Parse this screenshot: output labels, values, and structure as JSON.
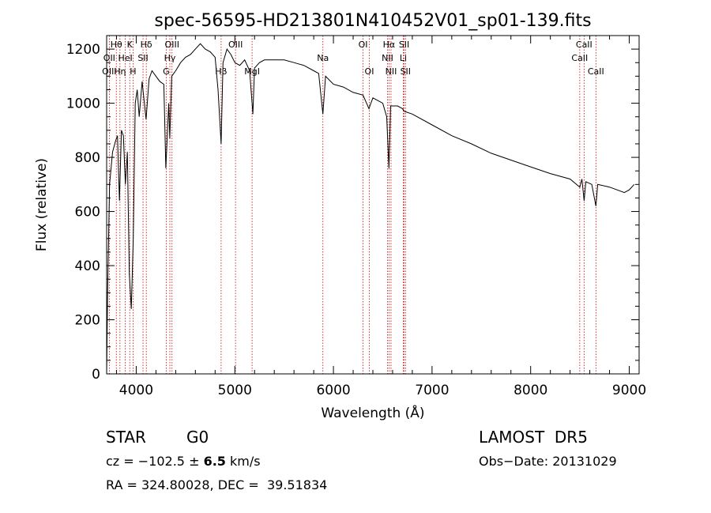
{
  "chart_data": {
    "type": "line",
    "title": "spec-56595-HD213801N410452V01_sp01-139.fits",
    "xlabel": "Wavelength (Å)",
    "ylabel": "Flux (relative)",
    "xlim": [
      3700,
      9100
    ],
    "ylim": [
      0,
      1250
    ],
    "xticks": [
      4000,
      5000,
      6000,
      7000,
      8000,
      9000
    ],
    "xtick_labels": [
      "4000",
      "5000",
      "6000",
      "7000",
      "8000",
      "9000"
    ],
    "yticks": [
      0,
      200,
      400,
      600,
      800,
      1000,
      1200
    ],
    "ytick_labels": [
      "0",
      "200",
      "400",
      "600",
      "800",
      "1000",
      "1200"
    ],
    "grid": false,
    "series": [
      {
        "x": [
          3700,
          3710,
          3730,
          3760,
          3790,
          3810,
          3830,
          3850,
          3870,
          3890,
          3910,
          3930,
          3950,
          3970,
          3990,
          4010,
          4030,
          4060,
          4100,
          4130,
          4160,
          4200,
          4240,
          4280,
          4300,
          4330,
          4340,
          4360,
          4400,
          4450,
          4500,
          4550,
          4600,
          4650,
          4700,
          4750,
          4800,
          4830,
          4861,
          4880,
          4920,
          4960,
          5000,
          5050,
          5100,
          5150,
          5183,
          5200,
          5250,
          5300,
          5400,
          5500,
          5600,
          5700,
          5800,
          5850,
          5893,
          5920,
          6000,
          6100,
          6200,
          6300,
          6360,
          6400,
          6500,
          6540,
          6563,
          6580,
          6650,
          6700,
          6720,
          6800,
          7000,
          7200,
          7400,
          7600,
          7800,
          8000,
          8200,
          8400,
          8498,
          8520,
          8542,
          8560,
          8620,
          8662,
          8680,
          8800,
          8950,
          9000,
          9050
        ],
        "y": [
          0,
          300,
          700,
          820,
          860,
          880,
          640,
          900,
          880,
          700,
          820,
          370,
          240,
          500,
          1000,
          1050,
          950,
          1080,
          940,
          1090,
          1120,
          1100,
          1080,
          1070,
          760,
          1000,
          870,
          1100,
          1120,
          1150,
          1170,
          1180,
          1200,
          1220,
          1200,
          1190,
          1170,
          1050,
          850,
          1150,
          1200,
          1180,
          1150,
          1140,
          1160,
          1120,
          960,
          1130,
          1150,
          1160,
          1160,
          1160,
          1150,
          1140,
          1120,
          1110,
          960,
          1100,
          1070,
          1060,
          1040,
          1030,
          980,
          1020,
          1000,
          950,
          760,
          990,
          990,
          980,
          970,
          960,
          920,
          880,
          850,
          815,
          790,
          765,
          740,
          720,
          690,
          720,
          640,
          710,
          700,
          620,
          700,
          690,
          670,
          680,
          700
        ]
      }
    ],
    "line_markers": [
      {
        "label": "Hθ",
        "x": 3798,
        "row": 1
      },
      {
        "label": "OII",
        "x": 3727,
        "row": 2
      },
      {
        "label": "OIII",
        "x": 3727,
        "row": 3
      },
      {
        "label": "K",
        "x": 3934,
        "row": 1
      },
      {
        "label": "HeI",
        "x": 3889,
        "row": 2
      },
      {
        "label": "Hη",
        "x": 3835,
        "row": 3
      },
      {
        "label": "H",
        "x": 3968,
        "row": 3
      },
      {
        "label": "SII",
        "x": 4069,
        "row": 2
      },
      {
        "label": "Hδ",
        "x": 4102,
        "row": 1
      },
      {
        "label": "OIII",
        "x": 4363,
        "row": 1
      },
      {
        "label": "Hγ",
        "x": 4341,
        "row": 2
      },
      {
        "label": "G",
        "x": 4304,
        "row": 3
      },
      {
        "label": "Hβ",
        "x": 4861,
        "row": 3
      },
      {
        "label": "OIII",
        "x": 5007,
        "row": 1
      },
      {
        "label": "MgI",
        "x": 5175,
        "row": 3
      },
      {
        "label": "Na",
        "x": 5893,
        "row": 2
      },
      {
        "label": "OI",
        "x": 6300,
        "row": 1
      },
      {
        "label": "OI",
        "x": 6364,
        "row": 3
      },
      {
        "label": "Hα",
        "x": 6563,
        "row": 1
      },
      {
        "label": "SII",
        "x": 6717,
        "row": 1
      },
      {
        "label": "NII",
        "x": 6548,
        "row": 2
      },
      {
        "label": "Li",
        "x": 6708,
        "row": 2
      },
      {
        "label": "NII",
        "x": 6584,
        "row": 3
      },
      {
        "label": "SII",
        "x": 6731,
        "row": 3
      },
      {
        "label": "CaII",
        "x": 8542,
        "row": 1
      },
      {
        "label": "CaII",
        "x": 8498,
        "row": 2
      },
      {
        "label": "CaII",
        "x": 8662,
        "row": 3
      }
    ]
  },
  "info": {
    "object_class": "STAR",
    "subclass": "G0",
    "survey": "LAMOST  DR5",
    "cz_prefix": "cz = −102.5 ± ",
    "cz_error": "6.5",
    "cz_unit": " km/s",
    "obs_date": "Obs−Date: 20131029",
    "radec": "RA = 324.80028, DEC =  39.51834"
  },
  "colors": {
    "marker_line": "#cc0000",
    "spectrum": "#000000",
    "axes": "#000000"
  }
}
